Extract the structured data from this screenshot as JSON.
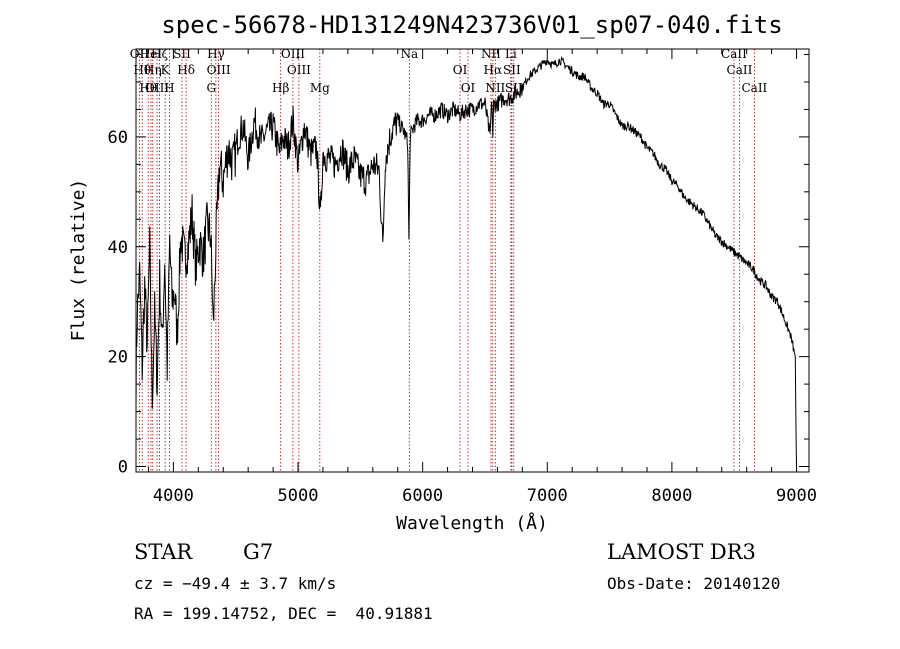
{
  "chart_data": {
    "type": "line",
    "title": "spec-56678-HD131249N423736V01_sp07-040.fits",
    "xlabel": "Wavelength (Å)",
    "ylabel": "Flux (relative)",
    "xlim": [
      3700,
      9100
    ],
    "ylim": [
      -1,
      76
    ],
    "xticks": [
      4000,
      5000,
      6000,
      7000,
      8000,
      9000
    ],
    "yticks": [
      0,
      20,
      40,
      60
    ],
    "grid": false,
    "series": [
      {
        "x": [
          3700,
          3710,
          3730,
          3750,
          3770,
          3790,
          3810,
          3830,
          3850,
          3870,
          3890,
          3910,
          3930,
          3950,
          3970,
          3990,
          4010,
          4030,
          4060,
          4090,
          4120,
          4150,
          4180,
          4210,
          4240,
          4270,
          4300,
          4320,
          4340,
          4370,
          4400,
          4440,
          4480,
          4520,
          4560,
          4600,
          4650,
          4700,
          4750,
          4800,
          4850,
          4880,
          4920,
          4960,
          5000,
          5050,
          5100,
          5150,
          5180,
          5200,
          5250,
          5300,
          5350,
          5400,
          5450,
          5500,
          5550,
          5600,
          5650,
          5680,
          5700,
          5750,
          5800,
          5850,
          5880,
          5890,
          5900,
          5930,
          5960,
          6000,
          6050,
          6100,
          6150,
          6200,
          6250,
          6300,
          6350,
          6400,
          6450,
          6500,
          6540,
          6555,
          6563,
          6570,
          6600,
          6650,
          6700,
          6750,
          6800,
          6850,
          6900,
          6950,
          7000,
          7050,
          7100,
          7150,
          7200,
          7250,
          7300,
          7350,
          7400,
          7450,
          7500,
          7550,
          7600,
          7650,
          7700,
          7750,
          7800,
          7850,
          7900,
          7950,
          8000,
          8050,
          8100,
          8150,
          8200,
          8250,
          8300,
          8350,
          8400,
          8450,
          8500,
          8550,
          8600,
          8650,
          8700,
          8750,
          8800,
          8850,
          8900,
          8950,
          8970,
          8990,
          8995,
          9000
        ],
        "y": [
          15,
          28,
          35,
          18,
          33,
          22,
          40,
          12,
          28,
          15,
          34,
          22,
          38,
          18,
          41,
          30,
          32,
          24,
          42,
          38,
          40,
          46,
          36,
          41,
          38,
          44,
          42,
          25,
          40,
          55,
          52,
          58,
          55,
          60,
          62,
          56,
          63,
          59,
          61,
          62,
          57,
          60,
          58,
          63,
          55,
          62,
          57,
          58,
          45,
          57,
          56,
          55,
          58,
          54,
          56,
          53,
          52,
          55,
          54,
          40,
          56,
          61,
          63,
          61,
          59,
          41,
          60,
          62,
          63,
          63,
          64,
          64,
          65,
          64,
          65,
          64,
          65,
          65,
          66,
          66,
          60,
          67,
          60,
          66,
          66,
          67,
          67,
          68,
          69,
          71,
          72,
          73,
          74,
          73,
          74,
          73,
          72,
          71,
          71,
          69,
          68,
          66,
          66,
          64,
          62,
          62,
          61,
          60,
          58,
          57,
          55,
          54,
          52,
          51,
          49,
          48,
          47,
          46,
          44,
          42,
          41,
          40,
          39,
          38,
          37,
          36,
          34,
          33,
          31,
          30,
          27,
          24,
          22,
          20,
          8,
          0
        ]
      }
    ],
    "line_markers": [
      {
        "wl": 3727,
        "label": "OII"
      },
      {
        "wl": 3750,
        "label": "Hθ"
      },
      {
        "wl": 3798,
        "label": "Hθ"
      },
      {
        "wl": 3820,
        "label": "HeI"
      },
      {
        "wl": 3835,
        "label": "Hη"
      },
      {
        "wl": 3869,
        "label": "OIII"
      },
      {
        "wl": 3889,
        "label": "Hζ"
      },
      {
        "wl": 3934,
        "label": "K"
      },
      {
        "wl": 3968,
        "label": "H"
      },
      {
        "wl": 4069,
        "label": "SII"
      },
      {
        "wl": 4102,
        "label": "Hδ"
      },
      {
        "wl": 4304,
        "label": "G"
      },
      {
        "wl": 4341,
        "label": "Hγ"
      },
      {
        "wl": 4363,
        "label": "OIII"
      },
      {
        "wl": 4861,
        "label": "Hβ"
      },
      {
        "wl": 4959,
        "label": "OIII"
      },
      {
        "wl": 5007,
        "label": "OIII"
      },
      {
        "wl": 5175,
        "label": "Mg"
      },
      {
        "wl": 5893,
        "label": "Na"
      },
      {
        "wl": 6300,
        "label": "OI"
      },
      {
        "wl": 6364,
        "label": "OI"
      },
      {
        "wl": 6548,
        "label": "NII"
      },
      {
        "wl": 6563,
        "label": "Hα"
      },
      {
        "wl": 6583,
        "label": "NII"
      },
      {
        "wl": 6708,
        "label": "Li"
      },
      {
        "wl": 6716,
        "label": "SII"
      },
      {
        "wl": 6731,
        "label": "SII"
      },
      {
        "wl": 8498,
        "label": "CaII"
      },
      {
        "wl": 8542,
        "label": "CaII"
      },
      {
        "wl": 8662,
        "label": "CaII"
      }
    ]
  },
  "info": {
    "object_class": "STAR",
    "subclass": "G7",
    "survey": "LAMOST DR3",
    "cz": "cz = −49.4 ± 3.7 km/s",
    "obs_date": "Obs-Date: 20140120",
    "radec": "RA = 199.14752, DEC =  40.91881"
  },
  "colors": {
    "spectrum": "#000000",
    "marker": "#b00000",
    "axis": "#000000"
  }
}
